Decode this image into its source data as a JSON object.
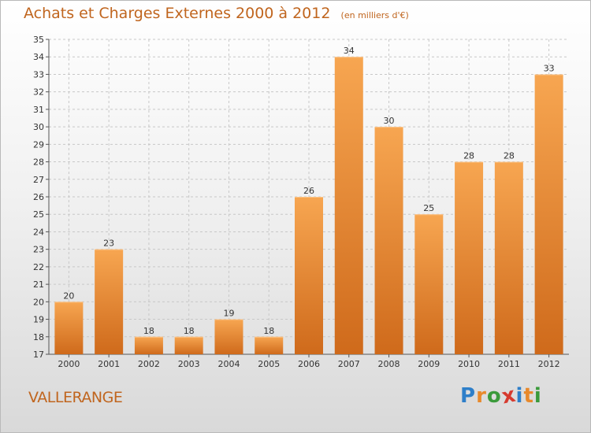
{
  "title": "Achats et Charges Externes 2000 à 2012",
  "unit": "(en milliers d'€)",
  "place": "VALLERANGE",
  "brand": {
    "letters": [
      "P",
      "r",
      "o",
      "x",
      "i",
      "t",
      "i"
    ],
    "colors": [
      "#2e7fc9",
      "#e8892b",
      "#3b9a3b",
      "#d63a2e",
      "#2e7fc9",
      "#e8892b",
      "#3b9a3b"
    ]
  },
  "colors": {
    "title": "#c0651e",
    "bar_top": "#f7a651",
    "bar_bottom": "#cf6a1b"
  },
  "chart_data": {
    "type": "bar",
    "categories": [
      "2000",
      "2001",
      "2002",
      "2003",
      "2004",
      "2005",
      "2006",
      "2007",
      "2008",
      "2009",
      "2010",
      "2011",
      "2012"
    ],
    "values": [
      20,
      23,
      18,
      18,
      19,
      18,
      26,
      34,
      30,
      25,
      28,
      28,
      33
    ],
    "ylim": [
      17,
      35
    ],
    "yticks": [
      17,
      18,
      19,
      20,
      21,
      22,
      23,
      24,
      25,
      26,
      27,
      28,
      29,
      30,
      31,
      32,
      33,
      34,
      35
    ],
    "grid": true,
    "xlabel": "",
    "ylabel": ""
  }
}
